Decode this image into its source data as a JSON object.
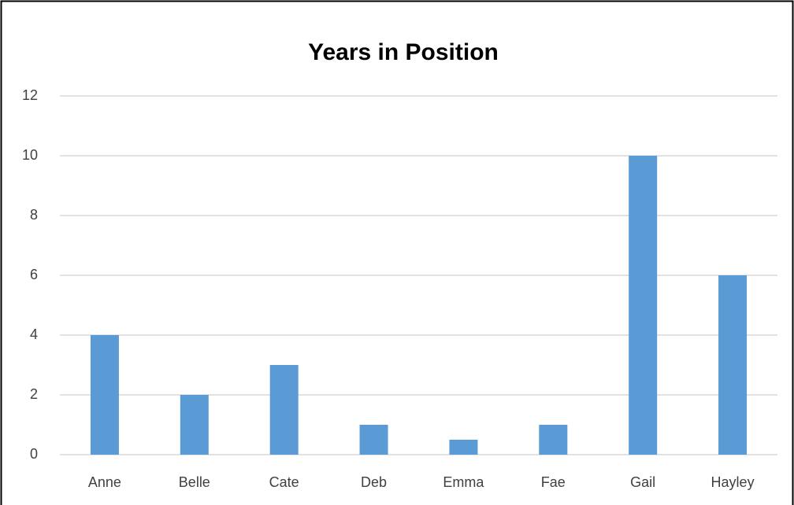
{
  "chart_data": {
    "type": "bar",
    "title": "Years in Position",
    "categories": [
      "Anne",
      "Belle",
      "Cate",
      "Deb",
      "Emma",
      "Fae",
      "Gail",
      "Hayley"
    ],
    "values": [
      4,
      2,
      3,
      1,
      0.5,
      1,
      10,
      6
    ],
    "color": "#5b9bd5",
    "ylim": [
      0,
      12
    ],
    "yticks": [
      0,
      2,
      4,
      6,
      8,
      10,
      12
    ],
    "grid": true
  }
}
